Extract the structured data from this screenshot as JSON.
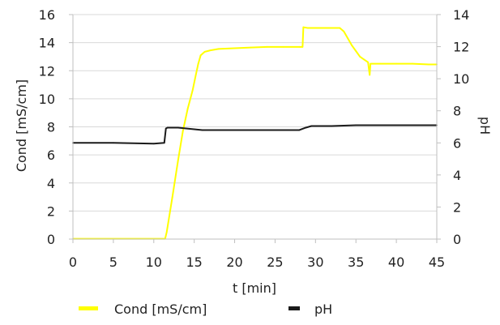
{
  "chart_data": {
    "type": "line",
    "title": "",
    "xlabel": "t [min]",
    "ylabel_left": "Cond [mS/cm]",
    "ylabel_right": "pH",
    "xlim": [
      0,
      45
    ],
    "ylim_left": [
      0,
      16
    ],
    "ylim_right": [
      0,
      14
    ],
    "x_ticks": [
      0,
      5,
      10,
      15,
      20,
      25,
      30,
      35,
      40,
      45
    ],
    "y_left_ticks": [
      0,
      2,
      4,
      6,
      8,
      10,
      12,
      14,
      16
    ],
    "y_right_ticks": [
      0,
      2,
      4,
      6,
      8,
      10,
      12,
      14
    ],
    "grid": "horizontal",
    "legend": "bottom",
    "series": [
      {
        "name": "Cond [mS/cm]",
        "axis": "left",
        "color": "#ffff00",
        "x": [
          0,
          11.4,
          11.6,
          12.3,
          13.0,
          13.6,
          14.2,
          14.8,
          15.2,
          15.5,
          15.8,
          16.3,
          17.0,
          18.0,
          20.0,
          22.0,
          24.0,
          26.0,
          28.0,
          28.4,
          28.5,
          29.0,
          31.0,
          33.0,
          33.5,
          34.0,
          34.5,
          35.0,
          35.5,
          36.0,
          36.5,
          36.7,
          36.8,
          37.0,
          38.0,
          40.0,
          42.0,
          44.0,
          45.0
        ],
        "y": [
          0.02,
          0.02,
          0.5,
          3.0,
          5.6,
          7.7,
          9.3,
          10.6,
          11.7,
          12.5,
          13.1,
          13.35,
          13.45,
          13.55,
          13.6,
          13.65,
          13.7,
          13.7,
          13.7,
          13.7,
          15.1,
          15.05,
          15.05,
          15.05,
          14.8,
          14.3,
          13.8,
          13.4,
          13.0,
          12.8,
          12.6,
          11.7,
          12.5,
          12.5,
          12.5,
          12.5,
          12.5,
          12.45,
          12.45
        ]
      },
      {
        "name": "pH",
        "axis": "right",
        "color": "#1a1a1a",
        "x": [
          0,
          5,
          10,
          11.3,
          11.5,
          11.7,
          13.0,
          14.0,
          15.0,
          16.0,
          18.0,
          20.0,
          25.0,
          28.0,
          28.8,
          29.5,
          30.0,
          32.0,
          35.0,
          40.0,
          45.0
        ],
        "y": [
          6.0,
          6.0,
          5.95,
          6.0,
          6.9,
          6.95,
          6.95,
          6.9,
          6.85,
          6.8,
          6.8,
          6.8,
          6.8,
          6.8,
          6.95,
          7.05,
          7.05,
          7.05,
          7.1,
          7.1,
          7.1
        ]
      }
    ]
  }
}
